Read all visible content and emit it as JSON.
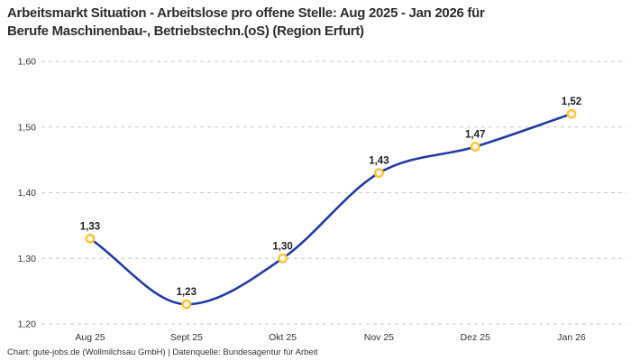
{
  "title": {
    "line1": "Arbeitsmarkt Situation - Arbeitslose pro offene Stelle: Aug 2025 - Jan 2026 für",
    "line2": "Berufe Maschinenbau-, Betriebstechn.(oS) (Region Erfurt)"
  },
  "footer": "Chart: gute-jobs.de (Wollmilchsau GmbH) | Datenquelle: Bundesagentur für Arbeit",
  "chart_data": {
    "type": "line",
    "title": "Arbeitsmarkt Situation - Arbeitslose pro offene Stelle: Aug 2025 - Jan 2026 für Berufe Maschinenbau-, Betriebstechn.(oS) (Region Erfurt)",
    "categories": [
      "Aug 25",
      "Sept 25",
      "Okt 25",
      "Nov 25",
      "Dez 25",
      "Jan 26"
    ],
    "series": [
      {
        "name": "Arbeitslose pro offene Stelle",
        "values": [
          1.33,
          1.23,
          1.3,
          1.43,
          1.47,
          1.52
        ],
        "value_labels": [
          "1,33",
          "1,23",
          "1,30",
          "1,43",
          "1,47",
          "1,52"
        ]
      }
    ],
    "y_ticks": [
      {
        "value": 1.2,
        "label": "1,20"
      },
      {
        "value": 1.3,
        "label": "1,30"
      },
      {
        "value": 1.4,
        "label": "1,40"
      },
      {
        "value": 1.5,
        "label": "1,50"
      },
      {
        "value": 1.6,
        "label": "1,60"
      }
    ],
    "ylim": [
      1.2,
      1.6
    ],
    "xlabel": "",
    "ylabel": "",
    "grid": "horizontal-dashed",
    "legend_position": "none",
    "curve": "smooth-monotone",
    "colors": {
      "line": "#203BA5",
      "marker_ring": "#FFC431",
      "marker_fill": "#FFFFFF",
      "grid": "#C9C9C9",
      "title_text": "#2D2D2D",
      "tick_text": "#333333",
      "label_text": "#1F1F1F"
    }
  }
}
